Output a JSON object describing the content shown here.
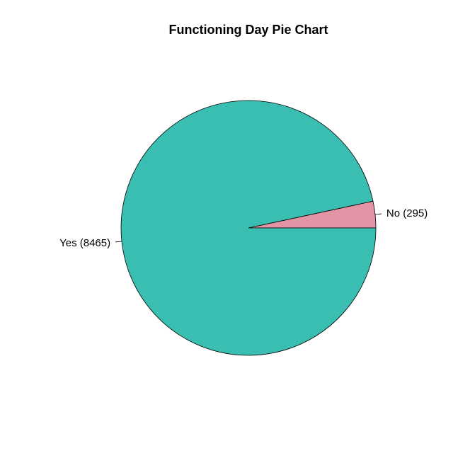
{
  "chart_data": {
    "type": "pie",
    "title": "Functioning Day Pie Chart",
    "slices": [
      {
        "label": "No (295)",
        "category": "No",
        "value": 295,
        "color": "#E495A5"
      },
      {
        "label": "Yes (8465)",
        "category": "Yes",
        "value": 8465,
        "color": "#39BEB1"
      }
    ],
    "start_angle_deg": 0,
    "direction": "counterclockwise",
    "border_color": "#000000"
  }
}
